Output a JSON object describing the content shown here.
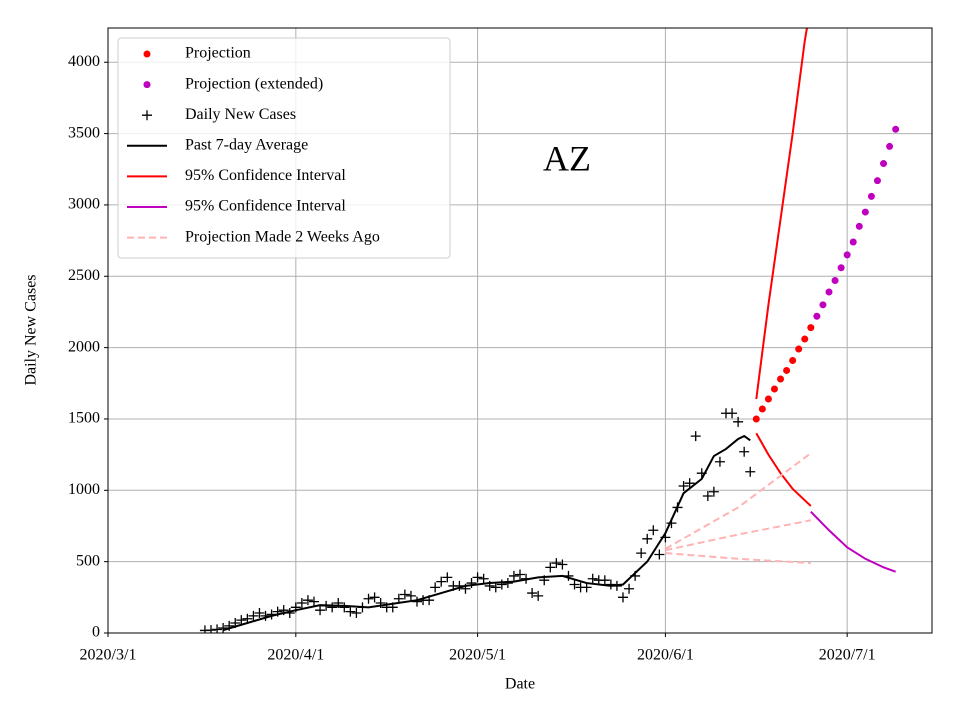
{
  "chart_data": {
    "type": "line",
    "annotation": "AZ",
    "xlabel": "Date",
    "ylabel": "Daily New Cases",
    "xlim": [
      "2020-03-01",
      "2020-07-15"
    ],
    "xticks": [
      {
        "value": "2020-03-01",
        "label": "2020/3/1"
      },
      {
        "value": "2020-04-01",
        "label": "2020/4/1"
      },
      {
        "value": "2020-05-01",
        "label": "2020/5/1"
      },
      {
        "value": "2020-06-01",
        "label": "2020/6/1"
      },
      {
        "value": "2020-07-01",
        "label": "2020/7/1"
      }
    ],
    "ylim": [
      0,
      4240
    ],
    "yticks": [
      0,
      500,
      1000,
      1500,
      2000,
      2500,
      3000,
      3500,
      4000
    ],
    "grid": true,
    "legend": "upper left",
    "series": [
      {
        "name": "Projection",
        "color": "#ff0000",
        "marker": "o",
        "x": [
          "2020-06-16",
          "2020-06-17",
          "2020-06-18",
          "2020-06-19",
          "2020-06-20",
          "2020-06-21",
          "2020-06-22",
          "2020-06-23",
          "2020-06-24",
          "2020-06-25"
        ],
        "values": [
          1500,
          1570,
          1640,
          1710,
          1780,
          1840,
          1910,
          1990,
          2060,
          2140
        ]
      },
      {
        "name": "Projection (extended)",
        "color": "#bf00bf",
        "marker": "o",
        "x": [
          "2020-06-26",
          "2020-06-27",
          "2020-06-28",
          "2020-06-29",
          "2020-06-30",
          "2020-07-01",
          "2020-07-02",
          "2020-07-03",
          "2020-07-04",
          "2020-07-05",
          "2020-07-06",
          "2020-07-07",
          "2020-07-08",
          "2020-07-09"
        ],
        "values": [
          2220,
          2300,
          2390,
          2470,
          2560,
          2650,
          2740,
          2850,
          2950,
          3060,
          3170,
          3290,
          3410,
          3530
        ]
      },
      {
        "name": "Daily New Cases",
        "color": "#000000",
        "marker": "+",
        "x": [
          "2020-03-17",
          "2020-03-18",
          "2020-03-19",
          "2020-03-20",
          "2020-03-21",
          "2020-03-22",
          "2020-03-23",
          "2020-03-24",
          "2020-03-25",
          "2020-03-26",
          "2020-03-27",
          "2020-03-28",
          "2020-03-29",
          "2020-03-30",
          "2020-03-31",
          "2020-04-01",
          "2020-04-02",
          "2020-04-03",
          "2020-04-04",
          "2020-04-05",
          "2020-04-06",
          "2020-04-07",
          "2020-04-08",
          "2020-04-09",
          "2020-04-10",
          "2020-04-11",
          "2020-04-12",
          "2020-04-13",
          "2020-04-14",
          "2020-04-15",
          "2020-04-16",
          "2020-04-17",
          "2020-04-18",
          "2020-04-19",
          "2020-04-20",
          "2020-04-21",
          "2020-04-22",
          "2020-04-23",
          "2020-04-24",
          "2020-04-25",
          "2020-04-26",
          "2020-04-27",
          "2020-04-28",
          "2020-04-29",
          "2020-04-30",
          "2020-05-01",
          "2020-05-02",
          "2020-05-03",
          "2020-05-04",
          "2020-05-05",
          "2020-05-06",
          "2020-05-07",
          "2020-05-08",
          "2020-05-09",
          "2020-05-10",
          "2020-05-11",
          "2020-05-12",
          "2020-05-13",
          "2020-05-14",
          "2020-05-15",
          "2020-05-16",
          "2020-05-17",
          "2020-05-18",
          "2020-05-19",
          "2020-05-20",
          "2020-05-21",
          "2020-05-22",
          "2020-05-23",
          "2020-05-24",
          "2020-05-25",
          "2020-05-26",
          "2020-05-27",
          "2020-05-28",
          "2020-05-29",
          "2020-05-30",
          "2020-05-31",
          "2020-06-01",
          "2020-06-02",
          "2020-06-03",
          "2020-06-04",
          "2020-06-05",
          "2020-06-06",
          "2020-06-07",
          "2020-06-08",
          "2020-06-09",
          "2020-06-10",
          "2020-06-11",
          "2020-06-12",
          "2020-06-13",
          "2020-06-14",
          "2020-06-15"
        ],
        "values": [
          18,
          20,
          25,
          35,
          50,
          70,
          90,
          100,
          120,
          140,
          120,
          130,
          150,
          160,
          140,
          180,
          210,
          230,
          220,
          160,
          190,
          180,
          210,
          180,
          150,
          140,
          180,
          240,
          250,
          210,
          180,
          180,
          240,
          270,
          260,
          220,
          230,
          230,
          320,
          360,
          390,
          330,
          330,
          310,
          350,
          390,
          380,
          330,
          320,
          340,
          350,
          400,
          410,
          380,
          280,
          260,
          370,
          460,
          490,
          480,
          400,
          340,
          320,
          320,
          380,
          370,
          370,
          340,
          330,
          250,
          310,
          400,
          560,
          660,
          720,
          550,
          670,
          770,
          880,
          1030,
          1050,
          1380,
          1120,
          960,
          990,
          1200,
          1540,
          1540,
          1480,
          1270,
          1130
        ]
      },
      {
        "name": "Past 7-day Average",
        "color": "#000000",
        "linestyle": "-",
        "x": [
          "2020-03-20",
          "2020-03-24",
          "2020-03-28",
          "2020-04-01",
          "2020-04-05",
          "2020-04-09",
          "2020-04-13",
          "2020-04-17",
          "2020-04-21",
          "2020-04-25",
          "2020-04-29",
          "2020-05-03",
          "2020-05-07",
          "2020-05-11",
          "2020-05-15",
          "2020-05-19",
          "2020-05-23",
          "2020-05-25",
          "2020-05-27",
          "2020-05-29",
          "2020-06-01",
          "2020-06-04",
          "2020-06-07",
          "2020-06-09",
          "2020-06-11",
          "2020-06-13",
          "2020-06-14",
          "2020-06-15"
        ],
        "values": [
          20,
          70,
          120,
          160,
          195,
          190,
          180,
          205,
          230,
          280,
          330,
          350,
          360,
          390,
          400,
          350,
          330,
          340,
          420,
          500,
          700,
          980,
          1080,
          1240,
          1290,
          1360,
          1380,
          1350
        ]
      },
      {
        "name": "95% Confidence Interval",
        "color": "#ff0000",
        "linestyle": "-",
        "x": [
          "2020-06-16",
          "2020-06-18",
          "2020-06-20",
          "2020-06-22",
          "2020-06-24",
          "2020-06-25",
          "2020-06-25",
          "2020-06-16",
          "2020-06-18",
          "2020-06-20",
          "2020-06-22",
          "2020-06-24",
          "2020-06-25"
        ],
        "values": [
          1640,
          2300,
          2900,
          3500,
          4150,
          4400,
          null,
          1400,
          1250,
          1120,
          1010,
          930,
          890
        ]
      },
      {
        "name": "95% Confidence Interval",
        "color": "#bf00bf",
        "linestyle": "-",
        "x": [
          "2020-06-25",
          "2020-06-28",
          "2020-07-01",
          "2020-07-04",
          "2020-07-07",
          "2020-07-09"
        ],
        "values": [
          850,
          720,
          600,
          520,
          460,
          430
        ]
      },
      {
        "name": "Projection Made 2 Weeks Ago",
        "color": "#ffb3b3",
        "linestyle": "--",
        "x": [
          "2020-06-01",
          "2020-06-13",
          "2020-06-25",
          "2020-06-25",
          "2020-06-01",
          "2020-06-13",
          "2020-06-25",
          "2020-06-25",
          "2020-06-01",
          "2020-06-13",
          "2020-06-25"
        ],
        "values": [
          590,
          880,
          1260,
          null,
          580,
          690,
          790,
          null,
          560,
          520,
          490
        ]
      }
    ]
  }
}
